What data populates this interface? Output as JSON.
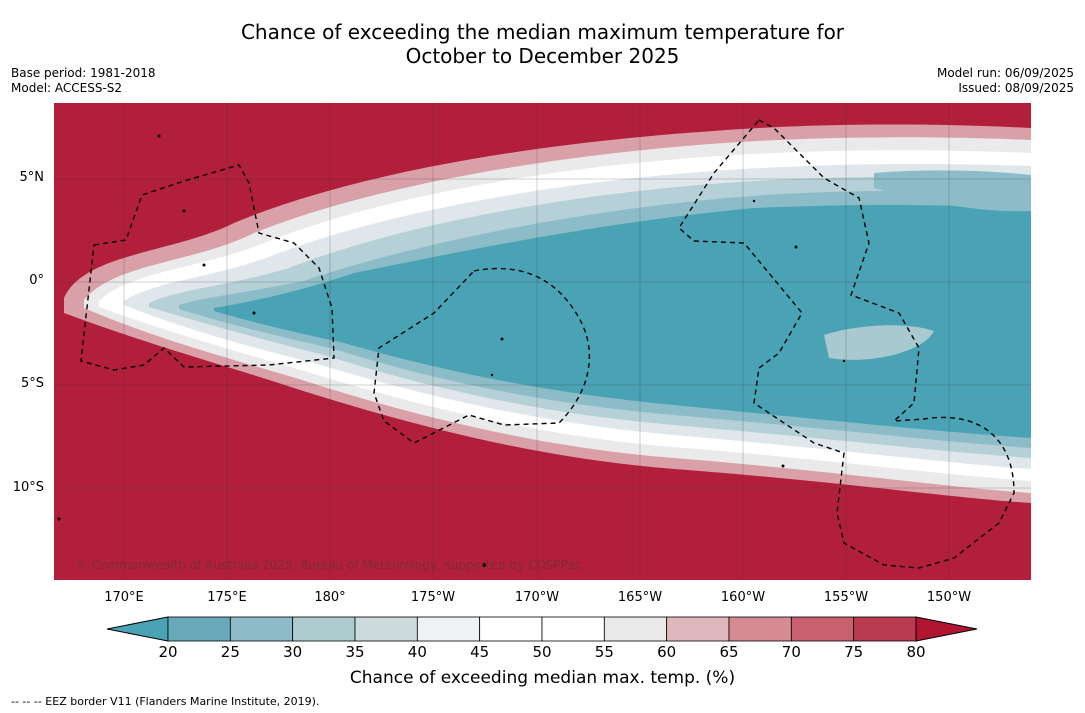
{
  "header": {
    "title_line1": "Chance of exceeding the median maximum temperature for",
    "title_line2": "October to December 2025",
    "base_period": "Base period: 1981-2018",
    "model": "Model: ACCESS-S2",
    "model_run": "Model run: 06/09/2025",
    "issued": "Issued: 08/09/2025"
  },
  "map": {
    "latitude_labels": [
      "5°N",
      "0°",
      "5°S",
      "10°S"
    ],
    "longitude_labels": [
      "170°E",
      "175°E",
      "180°",
      "175°W",
      "170°W",
      "165°W",
      "160°W",
      "155°W",
      "150°W"
    ],
    "copyright": "© Commonwealth of Australia 2025, Bureau of Meteorology, supported by COSPPac",
    "colors": {
      "cool_core": "#4aa3b4",
      "warm_background": "#b21f3a"
    }
  },
  "legend": {
    "ticks": [
      "20",
      "25",
      "30",
      "35",
      "40",
      "45",
      "50",
      "55",
      "60",
      "65",
      "70",
      "75",
      "80"
    ],
    "colors": [
      "#4aa3b4",
      "#68aab9",
      "#8dbcc8",
      "#aecbd0",
      "#ccdadc",
      "#eef2f4",
      "#ffffff",
      "#ffffff",
      "#e9e9e9",
      "#dfb7bd",
      "#d68a92",
      "#c96070",
      "#ba3a50",
      "#b01532",
      "#4aa3b4"
    ],
    "label": "Chance of exceeding median max. temp. (%)"
  },
  "footer": {
    "eez_note": "--  --  -- EEZ border V11 (Flanders Marine Institute, 2019)."
  }
}
